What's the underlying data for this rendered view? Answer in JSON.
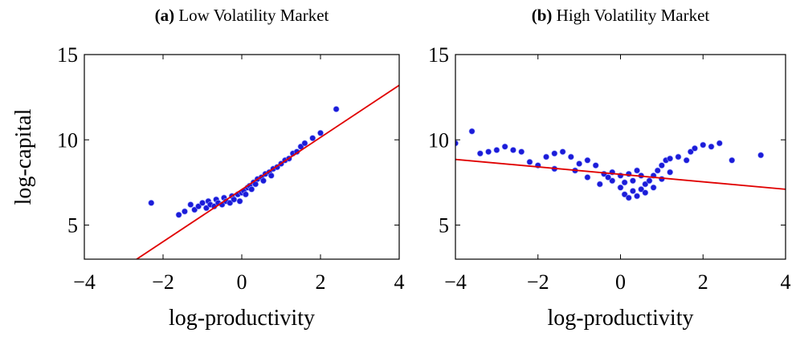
{
  "chart_data": [
    {
      "type": "scatter",
      "panel_label": "(a)",
      "title": "Low Volatility Market",
      "xlabel": "log-productivity",
      "ylabel": "log-capital",
      "xlim": [
        -4,
        4
      ],
      "ylim": [
        3,
        15
      ],
      "xticks": [
        {
          "value": -4,
          "label": "−4"
        },
        {
          "value": -2,
          "label": "−2"
        },
        0,
        2,
        4
      ],
      "yticks": [
        5,
        10,
        15
      ],
      "series": [
        {
          "style": "points",
          "color": "#1c1cd8",
          "x": [
            -2.3,
            -1.6,
            -1.45,
            -1.3,
            -1.2,
            -1.1,
            -1.0,
            -0.9,
            -0.85,
            -0.8,
            -0.7,
            -0.65,
            -0.6,
            -0.5,
            -0.45,
            -0.4,
            -0.3,
            -0.25,
            -0.2,
            -0.1,
            -0.05,
            0,
            0.05,
            0.1,
            0.15,
            0.2,
            0.25,
            0.3,
            0.35,
            0.4,
            0.5,
            0.55,
            0.6,
            0.7,
            0.75,
            0.8,
            0.9,
            1.0,
            1.1,
            1.2,
            1.3,
            1.4,
            1.5,
            1.6,
            1.8,
            2.0,
            2.4
          ],
          "values": [
            6.3,
            5.6,
            5.8,
            6.2,
            5.9,
            6.1,
            6.3,
            6.0,
            6.4,
            6.2,
            6.1,
            6.5,
            6.3,
            6.2,
            6.6,
            6.4,
            6.3,
            6.7,
            6.5,
            6.8,
            6.4,
            6.9,
            7.0,
            6.8,
            7.2,
            7.3,
            7.1,
            7.5,
            7.4,
            7.7,
            7.8,
            7.6,
            8.0,
            8.1,
            7.9,
            8.3,
            8.4,
            8.6,
            8.8,
            8.9,
            9.2,
            9.3,
            9.6,
            9.8,
            10.1,
            10.4,
            11.8
          ]
        },
        {
          "style": "line",
          "color": "#e00000",
          "x": [
            -2.67,
            4
          ],
          "values": [
            3,
            13.2
          ]
        }
      ]
    },
    {
      "type": "scatter",
      "panel_label": "(b)",
      "title": "High Volatility Market",
      "xlabel": "log-productivity",
      "xlim": [
        -4,
        4
      ],
      "ylim": [
        3,
        15
      ],
      "xticks": [
        {
          "value": -4,
          "label": "−4"
        },
        {
          "value": -2,
          "label": "−2"
        },
        0,
        2,
        4
      ],
      "yticks": [
        5,
        10,
        15
      ],
      "series": [
        {
          "style": "points",
          "color": "#1c1cd8",
          "x": [
            -4,
            -3.6,
            -3.4,
            -3.2,
            -3.0,
            -2.8,
            -2.6,
            -2.4,
            -2.2,
            -2.0,
            -1.8,
            -1.6,
            -1.4,
            -1.2,
            -1.0,
            -0.8,
            -0.6,
            -0.4,
            -0.2,
            0,
            0.1,
            0.2,
            0.3,
            0.4,
            0.5,
            0.6,
            0.7,
            0.8,
            0.9,
            1.0,
            1.1,
            1.2,
            1.4,
            1.6,
            1.7,
            1.8,
            2.0,
            2.2,
            2.4,
            2.7,
            3.4,
            -0.5,
            -0.3,
            0,
            0.1,
            0.2,
            0.3,
            0.5,
            0.6,
            0.8,
            -0.8,
            -1.1,
            -0.2,
            0.4,
            1.0,
            1.2,
            -1.6
          ],
          "values": [
            9.8,
            10.5,
            9.2,
            9.3,
            9.4,
            9.6,
            9.4,
            9.3,
            8.7,
            8.5,
            9.0,
            9.2,
            9.3,
            9.0,
            8.6,
            8.8,
            8.5,
            8.0,
            7.6,
            7.2,
            6.8,
            6.6,
            7.0,
            6.7,
            7.1,
            7.4,
            7.6,
            7.9,
            8.2,
            8.5,
            8.8,
            8.9,
            9.0,
            8.8,
            9.3,
            9.5,
            9.7,
            9.6,
            9.8,
            8.8,
            9.1,
            7.4,
            7.8,
            7.9,
            7.5,
            8.0,
            7.6,
            7.9,
            6.9,
            7.2,
            7.8,
            8.2,
            8.1,
            8.2,
            7.7,
            8.1,
            8.3
          ]
        },
        {
          "style": "line",
          "color": "#e00000",
          "x": [
            -4,
            4
          ],
          "values": [
            8.85,
            7.1
          ]
        }
      ]
    }
  ]
}
